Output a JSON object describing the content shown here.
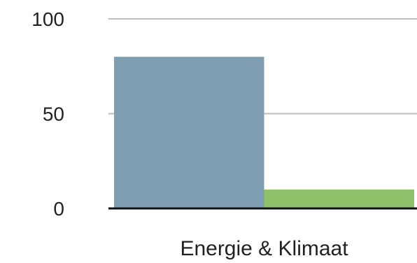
{
  "chart_data": {
    "type": "bar",
    "categories": [
      "Energie & Klimaat"
    ],
    "series": [
      {
        "values": [
          80
        ],
        "color": "#7f9eb2"
      },
      {
        "values": [
          10
        ],
        "color": "#8fc06a"
      }
    ],
    "yticks": [
      {
        "value": 0,
        "label": "0"
      },
      {
        "value": 50,
        "label": "50"
      },
      {
        "value": 100,
        "label": "100"
      }
    ],
    "ylim": [
      0,
      100
    ],
    "grid": true,
    "legend": "none"
  }
}
